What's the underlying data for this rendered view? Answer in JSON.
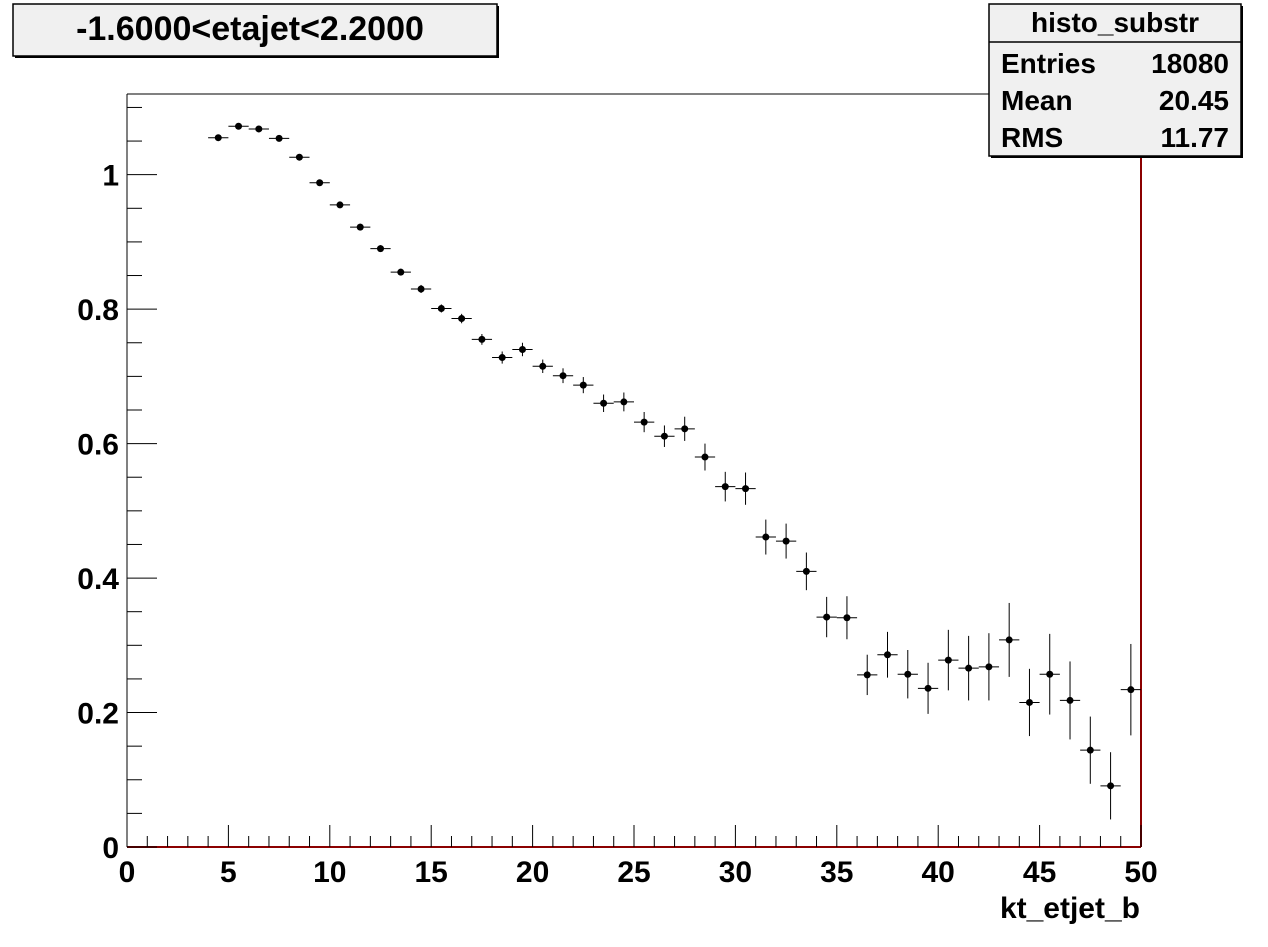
{
  "chart_data": {
    "type": "scatter",
    "title": "-1.6000<etajet<2.2000",
    "xlabel": "kt_etjet_b",
    "ylabel": "",
    "xlim": [
      0,
      50
    ],
    "ylim": [
      0,
      1.12
    ],
    "x_ticks": [
      "0",
      "5",
      "10",
      "15",
      "20",
      "25",
      "30",
      "35",
      "40",
      "45",
      "50"
    ],
    "y_ticks": [
      "0",
      "0.2",
      "0.4",
      "0.6",
      "0.8",
      "1"
    ],
    "grid": false,
    "legend": "none",
    "stats_box": {
      "name": "histo_substr",
      "rows": [
        {
          "label": "Entries",
          "value": "18080"
        },
        {
          "label": "Mean",
          "value": "20.45"
        },
        {
          "label": "RMS",
          "value": "11.77"
        }
      ]
    },
    "bin_width": 1,
    "series": [
      {
        "x": [
          4.5,
          5.5,
          6.5,
          7.5,
          8.5,
          9.5,
          10.5,
          11.5,
          12.5,
          13.5,
          14.5,
          15.5,
          16.5,
          17.5,
          18.5,
          19.5,
          20.5,
          21.5,
          22.5,
          23.5,
          24.5,
          25.5,
          26.5,
          27.5,
          28.5,
          29.5,
          30.5,
          31.5,
          32.5,
          33.5,
          34.5,
          35.5,
          36.5,
          37.5,
          38.5,
          39.5,
          40.5,
          41.5,
          42.5,
          43.5,
          44.5,
          45.5,
          46.5,
          47.5,
          48.5,
          49.5
        ],
        "y": [
          1.055,
          1.072,
          1.068,
          1.054,
          1.026,
          0.988,
          0.955,
          0.922,
          0.89,
          0.855,
          0.83,
          0.801,
          0.786,
          0.755,
          0.728,
          0.74,
          0.715,
          0.701,
          0.687,
          0.66,
          0.662,
          0.632,
          0.611,
          0.622,
          0.58,
          0.536,
          0.533,
          0.461,
          0.455,
          0.41,
          0.342,
          0.341,
          0.256,
          0.286,
          0.257,
          0.236,
          0.278,
          0.266,
          0.268,
          0.308,
          0.215,
          0.257,
          0.218,
          0.144,
          0.091,
          0.234
        ],
        "err": [
          0.003,
          0.003,
          0.003,
          0.004,
          0.004,
          0.004,
          0.004,
          0.005,
          0.005,
          0.005,
          0.006,
          0.006,
          0.007,
          0.008,
          0.009,
          0.01,
          0.01,
          0.011,
          0.012,
          0.013,
          0.014,
          0.015,
          0.016,
          0.018,
          0.02,
          0.022,
          0.024,
          0.026,
          0.026,
          0.028,
          0.03,
          0.032,
          0.03,
          0.034,
          0.036,
          0.038,
          0.045,
          0.048,
          0.05,
          0.055,
          0.05,
          0.06,
          0.058,
          0.05,
          0.05,
          0.068
        ]
      }
    ]
  },
  "colors": {
    "frame": "#000000",
    "right_axis": "#8b0000",
    "markers": "#000000",
    "box_fill": "#f0f0f0"
  }
}
